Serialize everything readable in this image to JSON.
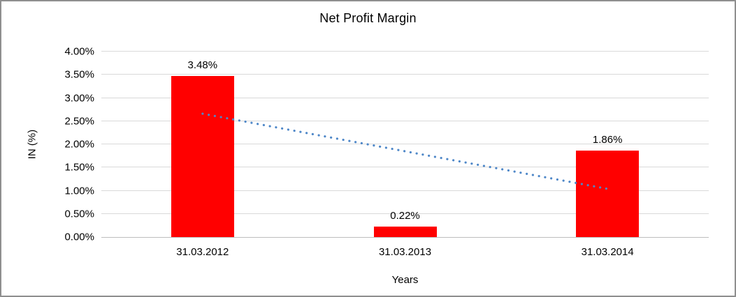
{
  "chart_data": {
    "type": "bar",
    "title": "Net Profit Margin",
    "categories": [
      "31.03.2012",
      "31.03.2013",
      "31.03.2014"
    ],
    "values": [
      3.48,
      0.22,
      1.86
    ],
    "data_labels": [
      "3.48%",
      "0.22%",
      "1.86%"
    ],
    "xlabel": "Years",
    "ylabel": "IN (%)",
    "ylim": [
      0,
      4
    ],
    "ytick_step": 0.5,
    "ytick_labels": [
      "0.00%",
      "0.50%",
      "1.00%",
      "1.50%",
      "2.00%",
      "2.50%",
      "3.00%",
      "3.50%",
      "4.00%"
    ],
    "grid": true,
    "legend": "none",
    "bar_color": "#ff0000",
    "gridline_color": "#d9d9d9",
    "axis_line_color": "#bdbdbd",
    "trendline": {
      "type": "linear",
      "style": "dotted",
      "color": "#4e87c8",
      "start_value": 2.66,
      "end_value": 1.04
    }
  }
}
